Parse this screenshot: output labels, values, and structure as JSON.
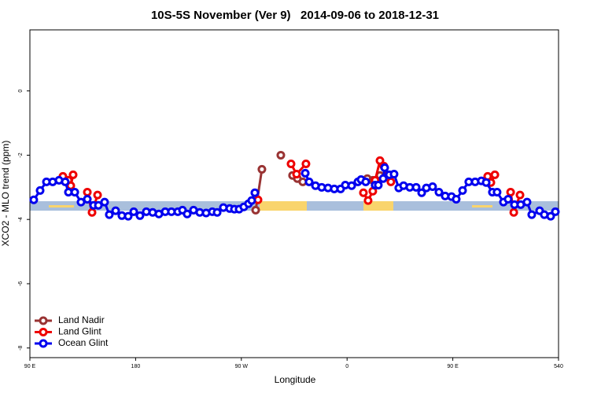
{
  "chart_data": {
    "type": "line",
    "title": "10S-5S November (Ver 9)   2014-09-06 to 2018-12-31",
    "x_label": "Longitude",
    "y_label": "XCO2 - MLO trend (ppm)",
    "xlim": [
      90,
      540
    ],
    "ylim": [
      -8.3,
      1.9
    ],
    "xticks": [
      {
        "value": 90,
        "label": "90 E"
      },
      180,
      {
        "value": 270,
        "label": "90 W"
      },
      {
        "value": 360,
        "label": "0"
      },
      {
        "value": 450,
        "label": "90 E"
      },
      540
    ],
    "yticks": [
      0,
      -2,
      -4,
      -6,
      -8
    ],
    "legend": "bottomleft",
    "series": [
      {
        "name": "Land Nadir",
        "color": "#993333",
        "x": [
          282.2,
          287.5,
          null,
          303.6,
          null,
          313.6,
          317.7,
          322.3,
          null,
          377.2,
          381.9,
          388.0
        ],
        "values": [
          -3.71,
          -2.44,
          null,
          -2.0,
          null,
          -2.63,
          -2.73,
          -2.83,
          null,
          -2.73,
          -2.78,
          -2.63
        ]
      },
      {
        "name": "Land Glint",
        "color": "#ee0000",
        "x": [
          118.1,
          122.8,
          124.8,
          126.8,
          null,
          138.9,
          142.9,
          147.6,
          null,
          284.2,
          null,
          312.3,
          317.0,
          325.0,
          null,
          373.9,
          377.9,
          381.9,
          383.9,
          388.0,
          391.3,
          394.0,
          397.3,
          null,
          479.7,
          482.4,
          485.8,
          null,
          499.2,
          501.9,
          507.2
        ],
        "values": [
          -2.66,
          -2.78,
          -2.95,
          -2.61,
          null,
          -3.15,
          -3.78,
          -3.24,
          null,
          -3.39,
          null,
          -2.27,
          -2.59,
          -2.27,
          null,
          -3.17,
          -3.41,
          -3.12,
          -2.78,
          -2.17,
          -2.34,
          -2.68,
          -2.83,
          null,
          -2.66,
          -2.85,
          -2.61,
          null,
          -3.15,
          -3.78,
          -3.24
        ]
      },
      {
        "name": "Ocean Glint",
        "color": "#0000ee",
        "x": [
          93.3,
          98.7,
          104.1,
          109.4,
          114.8,
          120.1,
          122.8,
          128.2,
          133.5,
          138.9,
          144.2,
          148.3,
          153.6,
          157.6,
          163.0,
          168.3,
          173.7,
          178.4,
          183.7,
          189.1,
          194.5,
          199.8,
          205.2,
          210.5,
          215.9,
          219.9,
          223.9,
          229.3,
          234.6,
          240.0,
          245.3,
          249.4,
          254.7,
          260.1,
          264.1,
          268.1,
          272.1,
          276.1,
          278.8,
          281.5,
          null,
          324.4,
          327.7,
          333.1,
          338.4,
          343.8,
          349.1,
          354.5,
          358.5,
          363.9,
          369.2,
          371.9,
          375.9,
          null,
          383.9,
          386.6,
          390.7,
          392.0,
          396.0,
          400.0,
          404.0,
          408.1,
          413.4,
          418.8,
          423.5,
          427.5,
          432.8,
          438.2,
          443.5,
          448.9,
          452.9,
          458.3,
          463.6,
          469.0,
          474.3,
          478.4,
          483.7,
          487.7,
          493.1,
          497.1,
          502.5,
          507.8,
          513.2,
          517.2,
          523.9,
          527.9,
          533.3,
          537.3
        ],
        "values": [
          -3.39,
          -3.1,
          -2.83,
          -2.83,
          -2.78,
          -2.83,
          -3.15,
          -3.15,
          -3.46,
          -3.37,
          -3.56,
          -3.56,
          -3.46,
          -3.85,
          -3.73,
          -3.88,
          -3.9,
          -3.76,
          -3.88,
          -3.76,
          -3.78,
          -3.83,
          -3.76,
          -3.76,
          -3.76,
          -3.71,
          -3.83,
          -3.71,
          -3.78,
          -3.8,
          -3.76,
          -3.78,
          -3.63,
          -3.66,
          -3.68,
          -3.68,
          -3.61,
          -3.51,
          -3.41,
          -3.17,
          null,
          -2.56,
          -2.83,
          -2.95,
          -3.0,
          -3.02,
          -3.05,
          -3.05,
          -2.93,
          -2.95,
          -2.83,
          -2.76,
          -2.83,
          null,
          -2.93,
          -2.93,
          -2.73,
          -2.39,
          -2.61,
          -2.59,
          -3.02,
          -2.95,
          -3.0,
          -3.0,
          -3.17,
          -3.02,
          -2.98,
          -3.15,
          -3.27,
          -3.29,
          -3.37,
          -3.1,
          -2.83,
          -2.83,
          -2.8,
          -2.85,
          -3.15,
          -3.15,
          -3.46,
          -3.37,
          -3.54,
          -3.54,
          -3.46,
          -3.85,
          -3.73,
          -3.85,
          -3.9,
          -3.76
        ]
      }
    ]
  }
}
